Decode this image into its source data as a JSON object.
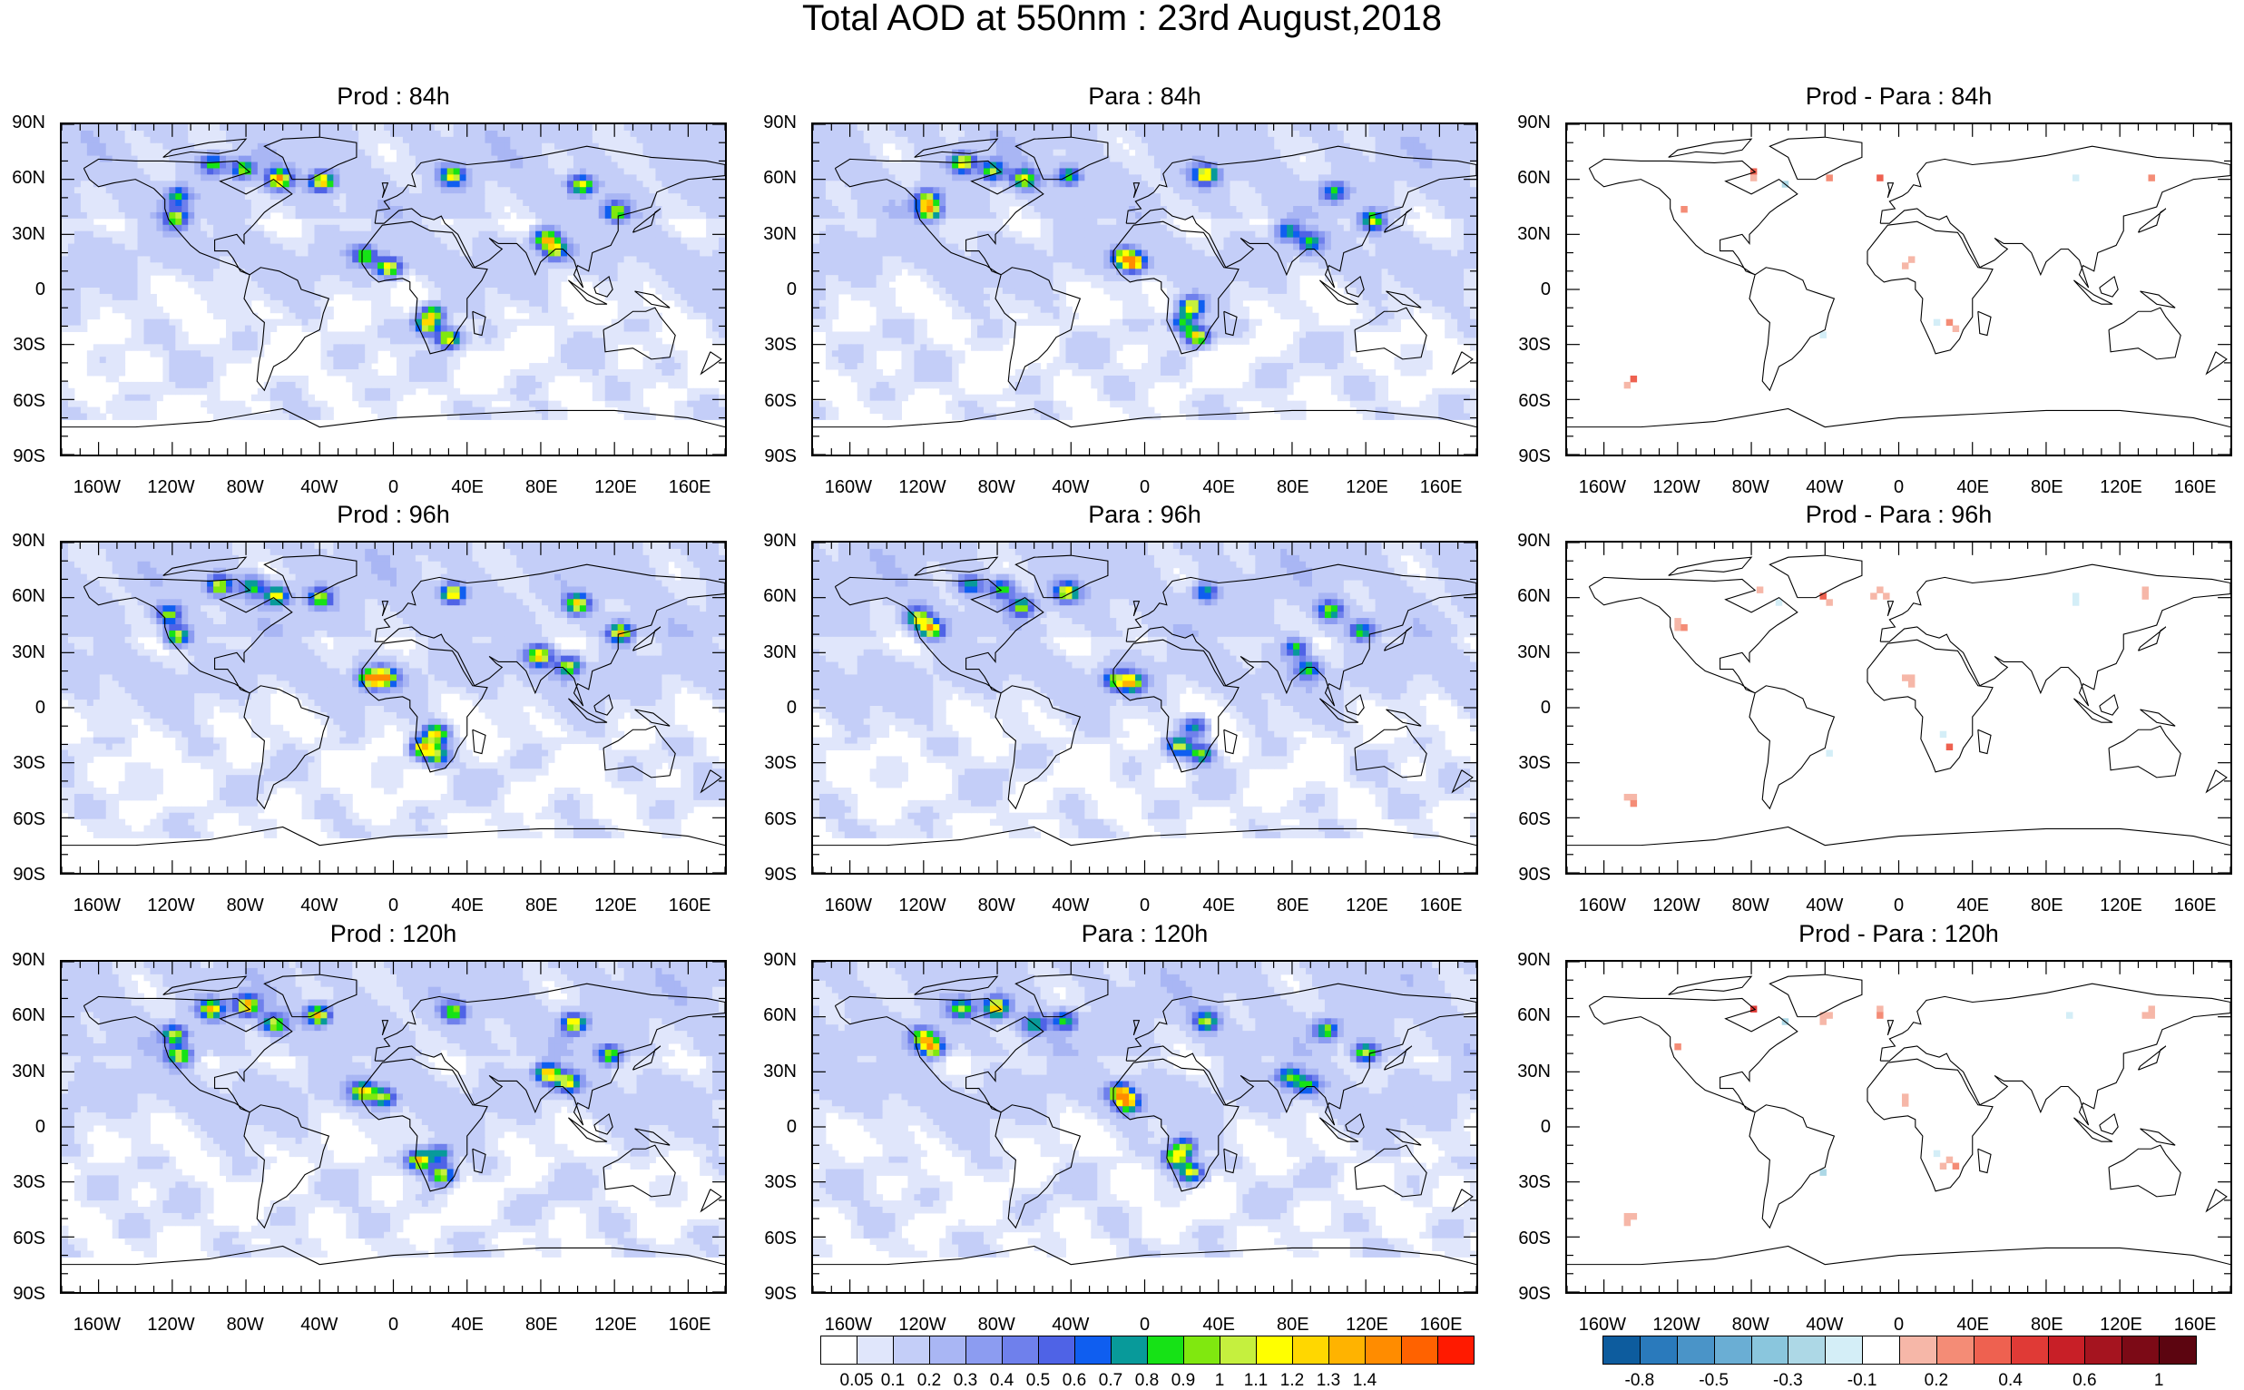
{
  "title": "Total AOD at 550nm : 23rd August,2018",
  "panels": [
    {
      "title": "Prod : 84h",
      "type": "aod",
      "seed": 11
    },
    {
      "title": "Para : 84h",
      "type": "aod",
      "seed": 12
    },
    {
      "title": "Prod - Para : 84h",
      "type": "diff",
      "seed": 13
    },
    {
      "title": "Prod : 96h",
      "type": "aod",
      "seed": 21
    },
    {
      "title": "Para : 96h",
      "type": "aod",
      "seed": 22
    },
    {
      "title": "Prod - Para : 96h",
      "type": "diff",
      "seed": 23
    },
    {
      "title": "Prod : 120h",
      "type": "aod",
      "seed": 31
    },
    {
      "title": "Para : 120h",
      "type": "aod",
      "seed": 32
    },
    {
      "title": "Prod - Para : 120h",
      "type": "diff",
      "seed": 33
    }
  ],
  "lat_labels": [
    "90N",
    "60N",
    "30N",
    "0",
    "30S",
    "60S",
    "90S"
  ],
  "lon_labels": [
    "160W",
    "120W",
    "80W",
    "40W",
    "0",
    "40E",
    "80E",
    "120E",
    "160E"
  ],
  "lon_values": [
    -160,
    -120,
    -80,
    -40,
    0,
    40,
    80,
    120,
    160
  ],
  "colorbars": {
    "aod": {
      "colors": [
        "#ffffff",
        "#e0e6fb",
        "#c4cef8",
        "#a9b6f4",
        "#8c9cf1",
        "#6f80ec",
        "#4f63e6",
        "#0f5ef0",
        "#089a9a",
        "#16e216",
        "#80e80f",
        "#c5f03e",
        "#ffff00",
        "#ffd700",
        "#ffb300",
        "#ff8c00",
        "#ff6200",
        "#ff1a00"
      ],
      "labels": [
        "0.05",
        "0.1",
        "0.2",
        "0.3",
        "0.4",
        "0.5",
        "0.6",
        "0.7",
        "0.8",
        "0.9",
        "1",
        "1.1",
        "1.2",
        "1.3",
        "1.4"
      ]
    },
    "diff": {
      "colors": [
        "#0d5c9e",
        "#2a7abc",
        "#4a94c8",
        "#6aaed4",
        "#8ac6dd",
        "#add8e6",
        "#d4eef7",
        "#ffffff",
        "#f6b7a8",
        "#f48c76",
        "#ee6150",
        "#e03a36",
        "#c81f27",
        "#a5141f",
        "#7c0a16",
        "#5c0510"
      ],
      "labels": [
        "-0.8",
        "-0.5",
        "-0.3",
        "-0.1",
        "0.2",
        "0.4",
        "0.6",
        "1"
      ]
    }
  }
}
